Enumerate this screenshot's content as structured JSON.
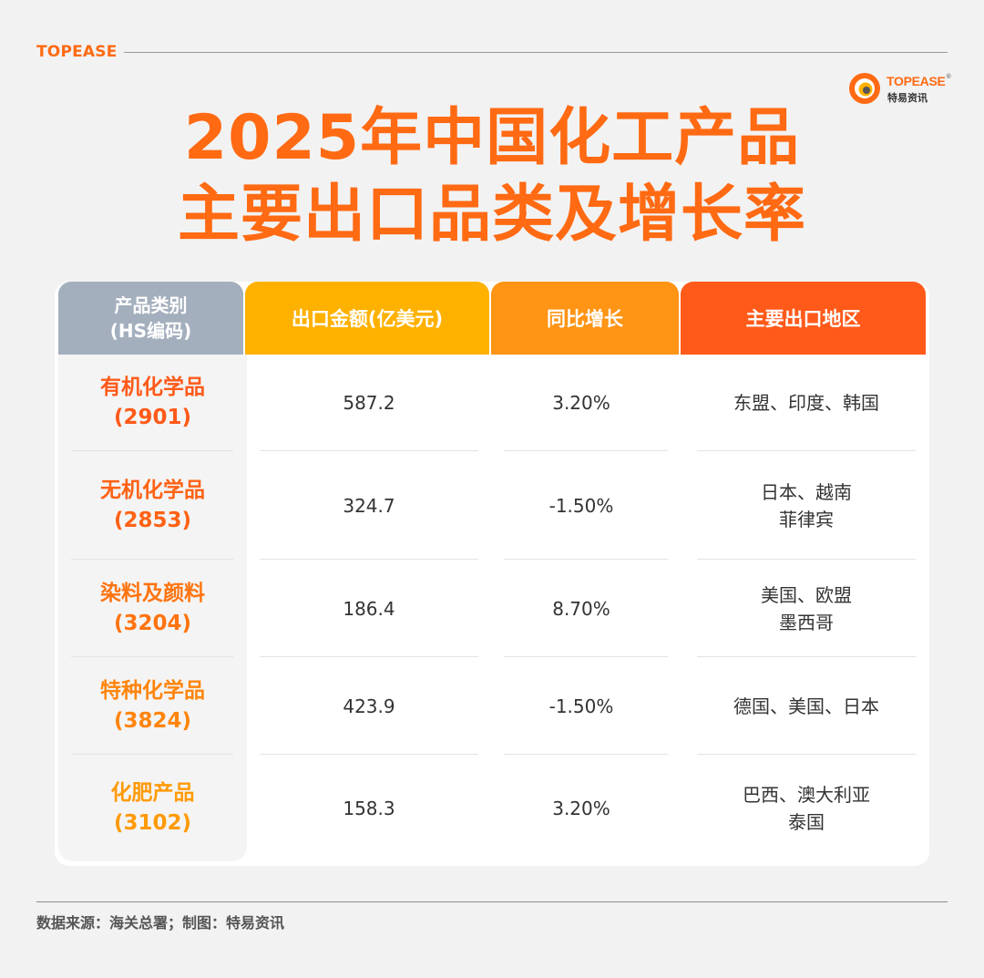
{
  "brand_top": "TOPEASE",
  "logo": {
    "word": "TOPEASE",
    "reg": "®",
    "sub": "特易资讯",
    "color": "#ff6a13"
  },
  "title": {
    "line1": "2025年中国化工产品",
    "line2": "主要出口品类及增长率"
  },
  "table": {
    "headers": {
      "category_line1": "产品类别",
      "category_line2": "(HS编码)",
      "amount": "出口金额(亿美元)",
      "growth": "同比增长",
      "regions": "主要出口地区"
    },
    "rows": [
      {
        "name": "有机化学品",
        "code": "(2901)",
        "amount": "587.2",
        "growth": "3.20%",
        "region_line1": "东盟、印度、韩国",
        "region_line2": "",
        "color": "#ff5a1a"
      },
      {
        "name": "无机化学品",
        "code": "(2853)",
        "amount": "324.7",
        "growth": "-1.50%",
        "region_line1": "日本、越南",
        "region_line2": "菲律宾",
        "color": "#ff6214"
      },
      {
        "name": "染料及颜料",
        "code": "(3204)",
        "amount": "186.4",
        "growth": "8.70%",
        "region_line1": "美国、欧盟",
        "region_line2": "墨西哥",
        "color": "#ff7410"
      },
      {
        "name": "特种化学品",
        "code": "(3824)",
        "amount": "423.9",
        "growth": "-1.50%",
        "region_line1": "德国、美国、日本",
        "region_line2": "",
        "color": "#ff850c"
      },
      {
        "name": "化肥产品",
        "code": "(3102)",
        "amount": "158.3",
        "growth": "3.20%",
        "region_line1": "巴西、澳大利亚",
        "region_line2": "泰国",
        "color": "#ff9a08"
      }
    ]
  },
  "footer": {
    "source": "数据来源：海关总署；制图：特易资讯"
  }
}
